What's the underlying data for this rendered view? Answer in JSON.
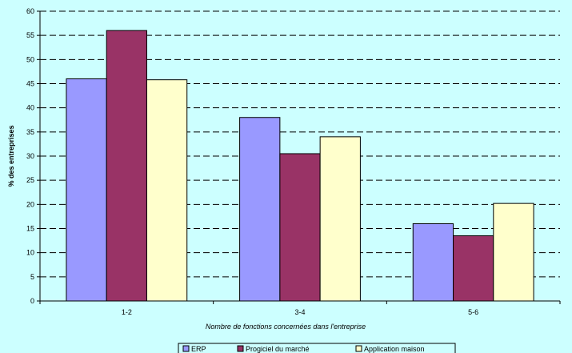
{
  "chart_data": {
    "type": "bar",
    "categories": [
      "1-2",
      "3-4",
      "5-6"
    ],
    "series": [
      {
        "name": "ERP",
        "values": [
          46,
          38,
          16
        ],
        "color": "#9999ff"
      },
      {
        "name": "Progiciel du marché",
        "values": [
          56,
          30.5,
          13.5
        ],
        "color": "#993366"
      },
      {
        "name": "Application maison",
        "values": [
          45.8,
          34,
          20.2
        ],
        "color": "#ffffcc"
      }
    ],
    "title": "",
    "xlabel": "Nombre de fonctions concernées dans l'entreprise",
    "ylabel": "% des entreprises",
    "ylim": [
      0,
      60
    ],
    "yticks": [
      0,
      5,
      10,
      15,
      20,
      25,
      30,
      35,
      40,
      45,
      50,
      55,
      60
    ],
    "grid": true,
    "legend": "bottom",
    "background_color": "#ccffff"
  }
}
